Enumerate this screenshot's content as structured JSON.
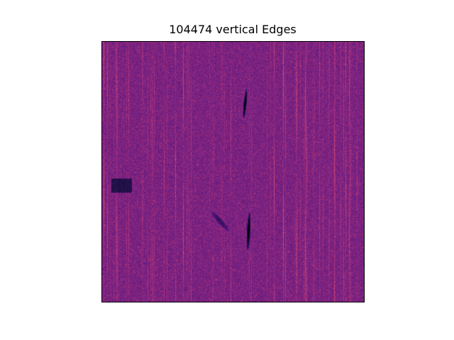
{
  "chart_data": {
    "type": "heatmap",
    "title": "104474 vertical Edges",
    "xlabel": "",
    "ylabel": "",
    "axis_ticks": "hidden",
    "grid": false,
    "legend": "none",
    "colormap": "magma",
    "background_color": "#6b2780",
    "streak_color": "#c8485a",
    "feature_color": "#000000",
    "features": [
      {
        "kind": "dark-streak",
        "value": 0.0
      },
      {
        "kind": "dark-streak",
        "value": 0.0
      },
      {
        "kind": "dark-patch",
        "value": 0.15
      },
      {
        "kind": "dark-diagonal",
        "value": 0.2
      }
    ]
  }
}
